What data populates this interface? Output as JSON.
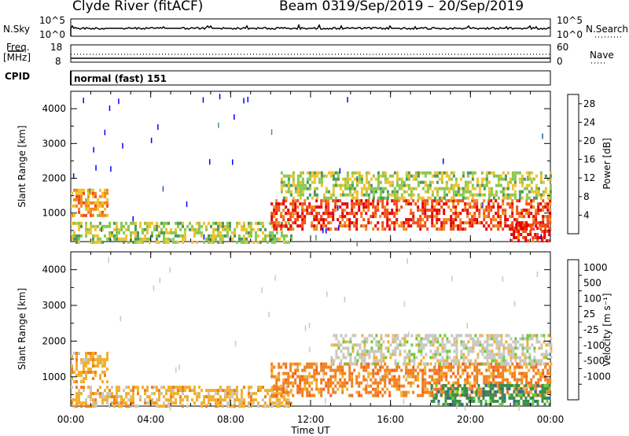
{
  "title": {
    "station": "Clyde River (fitACF)",
    "beam": "Beam 03",
    "date_range": "19/Sep/2019 – 20/Sep/2019"
  },
  "header_panels": {
    "nsky": {
      "label": "N.Sky",
      "tick_top": "10^5",
      "tick_bottom": "10^0"
    },
    "nsearch": {
      "label": "N.Search",
      "tick_top": "10^5",
      "tick_bottom": "10^0"
    },
    "freq": {
      "label_line1": "Freq.",
      "label_line2": "[MHz]",
      "tick_top": "18",
      "tick_bottom": "8"
    },
    "nave": {
      "label": "Nave",
      "tick_top": "60",
      "tick_bottom": "0"
    },
    "cpid": {
      "label": "CPID",
      "mode": "normal (fast) 151"
    }
  },
  "colors": {
    "power_scale": [
      "#0000ff",
      "#2c5aa8",
      "#4a9a5e",
      "#88c94f",
      "#f2c12d",
      "#f28a1c",
      "#f04e1a",
      "#e60000"
    ],
    "velocity_scale": [
      "#1a3fd6",
      "#2d6a9e",
      "#3c8d4a",
      "#6dca3c",
      "#c8c8c0",
      "#f2b030",
      "#f0801e",
      "#f06018",
      "#e60000"
    ]
  },
  "chart_data": [
    {
      "type": "heatmap",
      "name": "Power",
      "xlabel": "Time UT",
      "ylabel": "Slant Range [km]",
      "x_ticks": [
        "00:00",
        "04:00",
        "08:00",
        "12:00",
        "16:00",
        "20:00",
        "00:00"
      ],
      "x_range_hours": [
        0,
        24
      ],
      "y_ticks": [
        1000,
        2000,
        3000,
        4000
      ],
      "ylim": [
        180,
        4500
      ],
      "colorbar": {
        "label": "Power [dB]",
        "ticks": [
          4,
          8,
          12,
          16,
          20,
          24,
          28
        ],
        "range": [
          0,
          30
        ]
      },
      "echo_regions": [
        {
          "hours": [
            0.0,
            1.8
          ],
          "range_km": [
            900,
            1700
          ],
          "value": 20
        },
        {
          "hours": [
            0.0,
            11.0
          ],
          "range_km": [
            200,
            750
          ],
          "value": 14
        },
        {
          "hours": [
            10.0,
            24.0
          ],
          "range_km": [
            500,
            1400
          ],
          "value": 26
        },
        {
          "hours": [
            10.5,
            24.0
          ],
          "range_km": [
            1400,
            2200
          ],
          "value": 14
        },
        {
          "hours": [
            22.0,
            24.0
          ],
          "range_km": [
            200,
            700
          ],
          "value": 28
        }
      ]
    },
    {
      "type": "heatmap",
      "name": "Velocity",
      "xlabel": "Time UT",
      "ylabel": "Slant Range [km]",
      "x_ticks": [
        "00:00",
        "04:00",
        "08:00",
        "12:00",
        "16:00",
        "20:00",
        "00:00"
      ],
      "x_range_hours": [
        0,
        24
      ],
      "y_ticks": [
        1000,
        2000,
        3000,
        4000
      ],
      "ylim": [
        180,
        4500
      ],
      "colorbar": {
        "label": "Velocity [m s^-1]",
        "ticks": [
          1000,
          500,
          100,
          25,
          -25,
          -100,
          -500,
          -1000
        ]
      },
      "echo_regions": [
        {
          "hours": [
            0.0,
            1.8
          ],
          "range_km": [
            900,
            1700
          ],
          "value": -100
        },
        {
          "hours": [
            0.0,
            11.0
          ],
          "range_km": [
            200,
            750
          ],
          "value": -100
        },
        {
          "hours": [
            10.0,
            24.0
          ],
          "range_km": [
            500,
            1400
          ],
          "value": -500
        },
        {
          "hours": [
            13.0,
            24.0
          ],
          "range_km": [
            1400,
            2200
          ],
          "value": 0
        },
        {
          "hours": [
            18.0,
            24.0
          ],
          "range_km": [
            200,
            800
          ],
          "value": 100
        }
      ]
    }
  ]
}
